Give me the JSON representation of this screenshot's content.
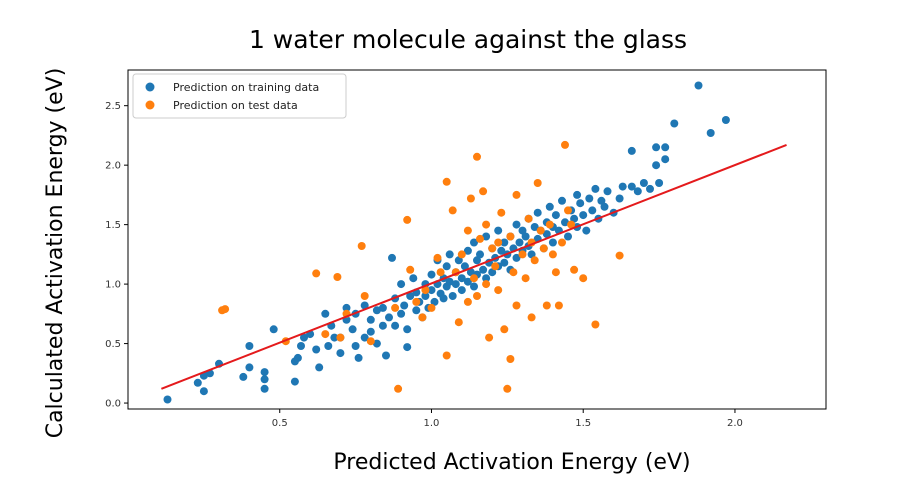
{
  "chart_data": {
    "type": "scatter",
    "title": "1 water molecule against the glass",
    "xlabel": "Predicted Activation Energy  (eV)",
    "ylabel": "Calculated Activation Energy (eV)",
    "xlim": [
      0.0,
      2.3
    ],
    "ylim": [
      -0.05,
      2.8
    ],
    "xticks": [
      "0.5",
      "1.0",
      "1.5",
      "2.0"
    ],
    "yticks": [
      "0.0",
      "0.5",
      "1.0",
      "1.5",
      "2.0",
      "2.5"
    ],
    "legend_position": "top-left",
    "grid": false,
    "series": [
      {
        "name": "Prediction on training data",
        "color": "#1f77b4",
        "points": [
          [
            0.13,
            0.03
          ],
          [
            0.23,
            0.17
          ],
          [
            0.25,
            0.1
          ],
          [
            0.27,
            0.25
          ],
          [
            0.3,
            0.33
          ],
          [
            0.25,
            0.23
          ],
          [
            0.38,
            0.22
          ],
          [
            0.4,
            0.48
          ],
          [
            0.4,
            0.3
          ],
          [
            0.45,
            0.12
          ],
          [
            0.45,
            0.2
          ],
          [
            0.45,
            0.26
          ],
          [
            0.48,
            0.62
          ],
          [
            0.55,
            0.18
          ],
          [
            0.55,
            0.35
          ],
          [
            0.56,
            0.38
          ],
          [
            0.57,
            0.48
          ],
          [
            0.58,
            0.55
          ],
          [
            0.6,
            0.58
          ],
          [
            0.62,
            0.45
          ],
          [
            0.63,
            0.3
          ],
          [
            0.65,
            0.75
          ],
          [
            0.66,
            0.48
          ],
          [
            0.67,
            0.65
          ],
          [
            0.68,
            0.55
          ],
          [
            0.7,
            0.42
          ],
          [
            0.7,
            0.55
          ],
          [
            0.72,
            0.7
          ],
          [
            0.72,
            0.8
          ],
          [
            0.74,
            0.62
          ],
          [
            0.75,
            0.75
          ],
          [
            0.75,
            0.48
          ],
          [
            0.76,
            0.38
          ],
          [
            0.78,
            0.55
          ],
          [
            0.78,
            0.82
          ],
          [
            0.8,
            0.7
          ],
          [
            0.8,
            0.6
          ],
          [
            0.82,
            0.78
          ],
          [
            0.82,
            0.5
          ],
          [
            0.84,
            0.65
          ],
          [
            0.84,
            0.8
          ],
          [
            0.85,
            0.4
          ],
          [
            0.86,
            0.72
          ],
          [
            0.87,
            1.22
          ],
          [
            0.88,
            0.88
          ],
          [
            0.88,
            0.65
          ],
          [
            0.9,
            0.75
          ],
          [
            0.9,
            1.0
          ],
          [
            0.91,
            0.82
          ],
          [
            0.92,
            0.62
          ],
          [
            0.92,
            0.47
          ],
          [
            0.93,
            0.9
          ],
          [
            0.94,
            1.05
          ],
          [
            0.95,
            0.78
          ],
          [
            0.95,
            0.93
          ],
          [
            0.96,
            0.85
          ],
          [
            0.97,
            0.72
          ],
          [
            0.98,
            1.0
          ],
          [
            0.98,
            0.9
          ],
          [
            0.99,
            0.8
          ],
          [
            1.0,
            1.08
          ],
          [
            1.0,
            0.95
          ],
          [
            1.01,
            0.85
          ],
          [
            1.02,
            1.2
          ],
          [
            1.02,
            1.0
          ],
          [
            1.03,
            0.92
          ],
          [
            1.04,
            1.05
          ],
          [
            1.04,
            0.88
          ],
          [
            1.05,
            1.15
          ],
          [
            1.05,
            0.98
          ],
          [
            1.06,
            1.25
          ],
          [
            1.06,
            1.02
          ],
          [
            1.07,
            0.9
          ],
          [
            1.08,
            1.1
          ],
          [
            1.08,
            1.0
          ],
          [
            1.09,
            1.2
          ],
          [
            1.1,
            1.05
          ],
          [
            1.1,
            0.95
          ],
          [
            1.11,
            1.15
          ],
          [
            1.12,
            1.28
          ],
          [
            1.12,
            1.02
          ],
          [
            1.13,
            1.1
          ],
          [
            1.14,
            0.98
          ],
          [
            1.14,
            1.35
          ],
          [
            1.15,
            1.2
          ],
          [
            1.15,
            1.08
          ],
          [
            1.16,
            1.25
          ],
          [
            1.17,
            1.12
          ],
          [
            1.18,
            1.4
          ],
          [
            1.18,
            1.05
          ],
          [
            1.19,
            1.18
          ],
          [
            1.2,
            1.3
          ],
          [
            1.2,
            1.1
          ],
          [
            1.21,
            1.22
          ],
          [
            1.22,
            1.45
          ],
          [
            1.22,
            1.15
          ],
          [
            1.23,
            1.28
          ],
          [
            1.24,
            1.35
          ],
          [
            1.24,
            1.18
          ],
          [
            1.25,
            1.25
          ],
          [
            1.26,
            1.4
          ],
          [
            1.26,
            1.12
          ],
          [
            1.27,
            1.3
          ],
          [
            1.28,
            1.5
          ],
          [
            1.28,
            1.22
          ],
          [
            1.29,
            1.35
          ],
          [
            1.3,
            1.28
          ],
          [
            1.3,
            1.45
          ],
          [
            1.31,
            1.4
          ],
          [
            1.32,
            1.55
          ],
          [
            1.32,
            1.32
          ],
          [
            1.33,
            1.25
          ],
          [
            1.34,
            1.48
          ],
          [
            1.35,
            1.38
          ],
          [
            1.35,
            1.6
          ],
          [
            1.36,
            1.45
          ],
          [
            1.37,
            1.3
          ],
          [
            1.38,
            1.52
          ],
          [
            1.38,
            1.42
          ],
          [
            1.39,
            1.65
          ],
          [
            1.4,
            1.48
          ],
          [
            1.4,
            1.35
          ],
          [
            1.41,
            1.58
          ],
          [
            1.42,
            1.45
          ],
          [
            1.43,
            1.7
          ],
          [
            1.44,
            1.52
          ],
          [
            1.45,
            1.4
          ],
          [
            1.46,
            1.62
          ],
          [
            1.47,
            1.55
          ],
          [
            1.48,
            1.75
          ],
          [
            1.48,
            1.48
          ],
          [
            1.49,
            1.68
          ],
          [
            1.5,
            1.58
          ],
          [
            1.51,
            1.45
          ],
          [
            1.52,
            1.72
          ],
          [
            1.53,
            1.62
          ],
          [
            1.54,
            1.8
          ],
          [
            1.55,
            1.55
          ],
          [
            1.56,
            1.7
          ],
          [
            1.57,
            1.65
          ],
          [
            1.58,
            1.78
          ],
          [
            1.6,
            1.6
          ],
          [
            1.62,
            1.72
          ],
          [
            1.63,
            1.82
          ],
          [
            1.66,
            1.82
          ],
          [
            1.68,
            1.78
          ],
          [
            1.7,
            1.85
          ],
          [
            1.72,
            1.8
          ],
          [
            1.74,
            2.0
          ],
          [
            1.74,
            2.15
          ],
          [
            1.75,
            1.85
          ],
          [
            1.77,
            2.15
          ],
          [
            1.77,
            2.05
          ],
          [
            1.8,
            2.35
          ],
          [
            1.88,
            2.67
          ],
          [
            1.92,
            2.27
          ],
          [
            1.97,
            2.38
          ],
          [
            1.66,
            2.12
          ]
        ]
      },
      {
        "name": "Prediction on test data",
        "color": "#ff7f0e",
        "points": [
          [
            0.31,
            0.78
          ],
          [
            0.32,
            0.79
          ],
          [
            0.52,
            0.52
          ],
          [
            0.62,
            1.09
          ],
          [
            0.65,
            0.58
          ],
          [
            0.69,
            1.06
          ],
          [
            0.7,
            0.55
          ],
          [
            0.72,
            0.75
          ],
          [
            0.77,
            1.32
          ],
          [
            0.78,
            0.9
          ],
          [
            0.8,
            0.52
          ],
          [
            0.88,
            0.8
          ],
          [
            0.89,
            0.12
          ],
          [
            0.92,
            1.54
          ],
          [
            0.93,
            1.12
          ],
          [
            0.95,
            0.85
          ],
          [
            0.97,
            0.72
          ],
          [
            0.98,
            0.95
          ],
          [
            1.0,
            0.8
          ],
          [
            1.03,
            1.1
          ],
          [
            1.05,
            0.4
          ],
          [
            1.05,
            1.86
          ],
          [
            1.07,
            1.62
          ],
          [
            1.08,
            1.1
          ],
          [
            1.09,
            0.68
          ],
          [
            1.1,
            1.25
          ],
          [
            1.12,
            0.85
          ],
          [
            1.12,
            1.45
          ],
          [
            1.13,
            1.72
          ],
          [
            1.14,
            1.05
          ],
          [
            1.15,
            0.9
          ],
          [
            1.15,
            2.07
          ],
          [
            1.16,
            1.38
          ],
          [
            1.17,
            1.78
          ],
          [
            1.18,
            1.0
          ],
          [
            1.19,
            0.55
          ],
          [
            1.2,
            1.3
          ],
          [
            1.21,
            1.15
          ],
          [
            1.22,
            0.95
          ],
          [
            1.23,
            1.6
          ],
          [
            1.24,
            0.62
          ],
          [
            1.25,
            0.12
          ],
          [
            1.26,
            0.37
          ],
          [
            1.26,
            1.4
          ],
          [
            1.27,
            1.1
          ],
          [
            1.28,
            1.75
          ],
          [
            1.28,
            0.82
          ],
          [
            1.3,
            1.25
          ],
          [
            1.31,
            1.05
          ],
          [
            1.32,
            1.55
          ],
          [
            1.33,
            1.35
          ],
          [
            1.33,
            0.72
          ],
          [
            1.34,
            1.2
          ],
          [
            1.35,
            1.85
          ],
          [
            1.36,
            1.45
          ],
          [
            1.37,
            1.3
          ],
          [
            1.38,
            0.82
          ],
          [
            1.39,
            1.5
          ],
          [
            1.4,
            1.25
          ],
          [
            1.41,
            1.1
          ],
          [
            1.42,
            0.82
          ],
          [
            1.43,
            1.35
          ],
          [
            1.44,
            2.17
          ],
          [
            1.45,
            1.62
          ],
          [
            1.46,
            1.5
          ],
          [
            1.47,
            1.12
          ],
          [
            1.54,
            0.66
          ],
          [
            1.62,
            1.24
          ],
          [
            1.5,
            1.05
          ],
          [
            1.18,
            1.5
          ],
          [
            1.02,
            1.22
          ],
          [
            1.22,
            1.35
          ]
        ]
      }
    ],
    "fit_line": {
      "color": "#e41a1c",
      "x": [
        0.11,
        2.17
      ],
      "y": [
        0.12,
        2.17
      ]
    }
  }
}
